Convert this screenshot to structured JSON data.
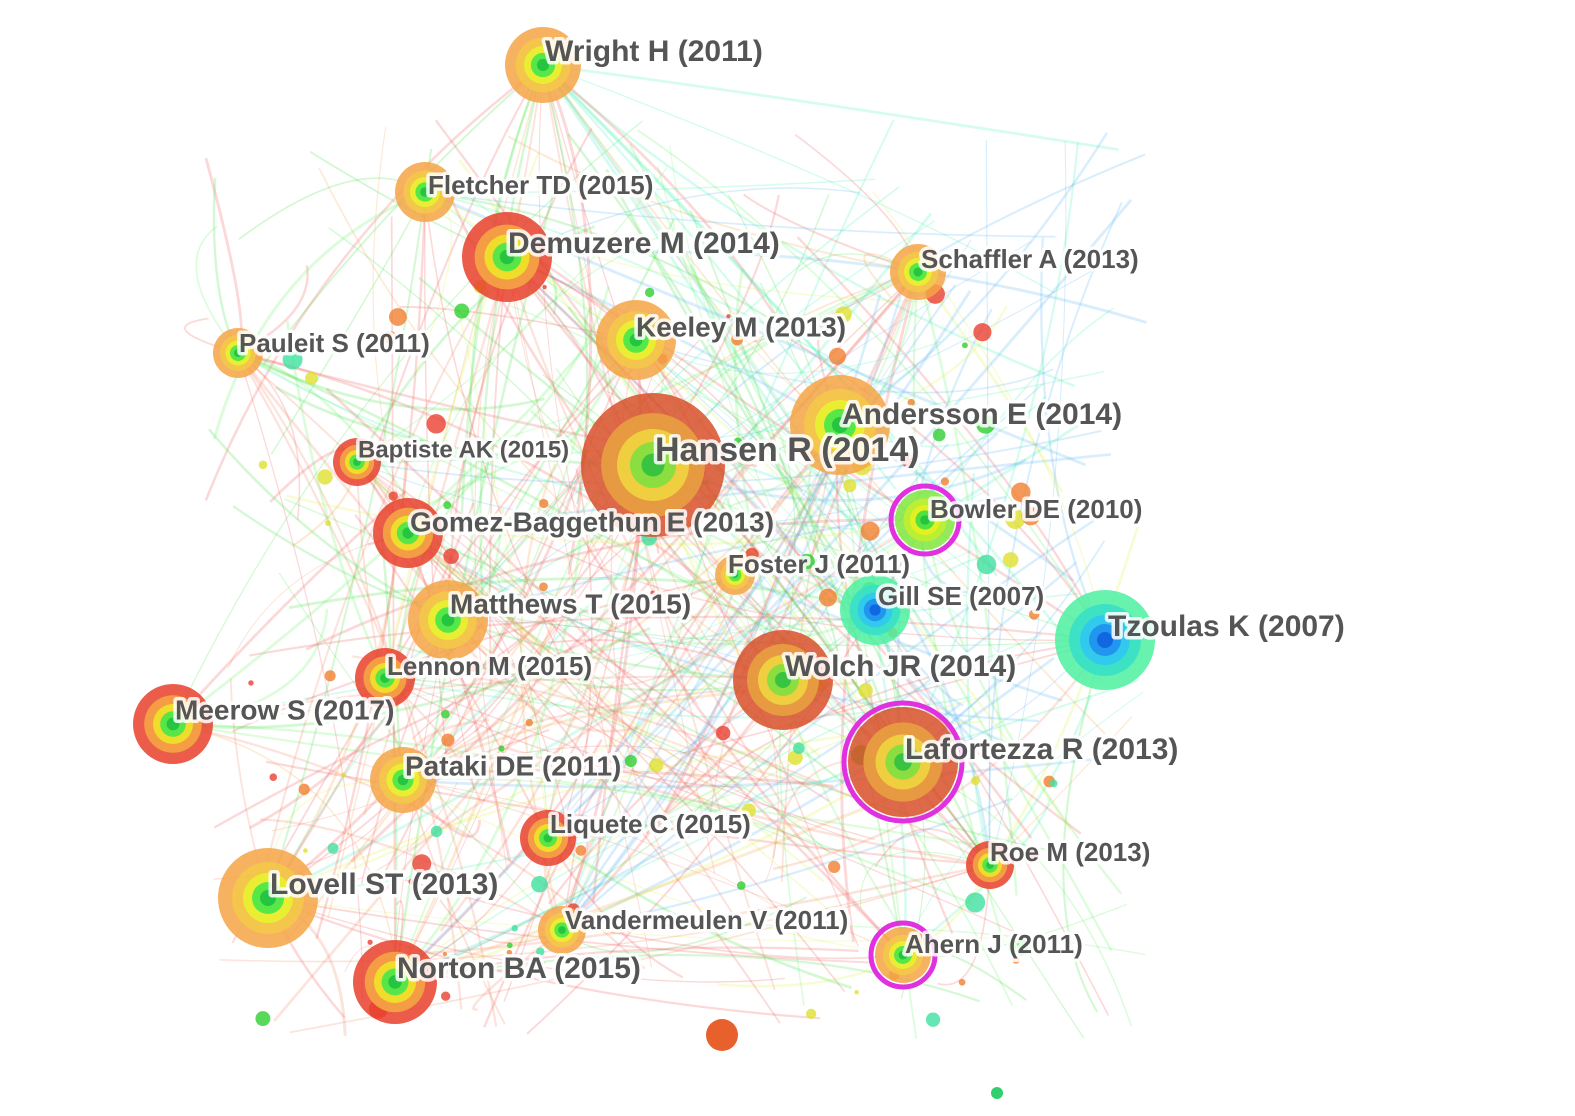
{
  "nodes": [
    {
      "label": "Wright H (2011)"
    },
    {
      "label": "Fletcher TD (2015)"
    },
    {
      "label": "Demuzere M (2014)"
    },
    {
      "label": "Schaffler A (2013)"
    },
    {
      "label": "Keeley M (2013)"
    },
    {
      "label": "Pauleit S (2011)"
    },
    {
      "label": "Andersson E (2014)"
    },
    {
      "label": "Hansen R (2014)"
    },
    {
      "label": "Baptiste AK (2015)"
    },
    {
      "label": "Bowler DE (2010)"
    },
    {
      "label": "Gomez-Baggethun E (2013)"
    },
    {
      "label": "Foster J (2011)"
    },
    {
      "label": "Gill SE (2007)"
    },
    {
      "label": "Tzoulas K (2007)"
    },
    {
      "label": "Matthews T (2015)"
    },
    {
      "label": "Lennon M (2015)"
    },
    {
      "label": "Wolch JR (2014)"
    },
    {
      "label": "Meerow S (2017)"
    },
    {
      "label": "Lafortezza R (2013)"
    },
    {
      "label": "Pataki DE (2011)"
    },
    {
      "label": "Liquete C (2015)"
    },
    {
      "label": "Roe M (2013)"
    },
    {
      "label": "Lovell ST (2013)"
    },
    {
      "label": "Vandermeulen V (2011)"
    },
    {
      "label": "Ahern J (2011)"
    },
    {
      "label": "Norton BA (2015)"
    }
  ]
}
